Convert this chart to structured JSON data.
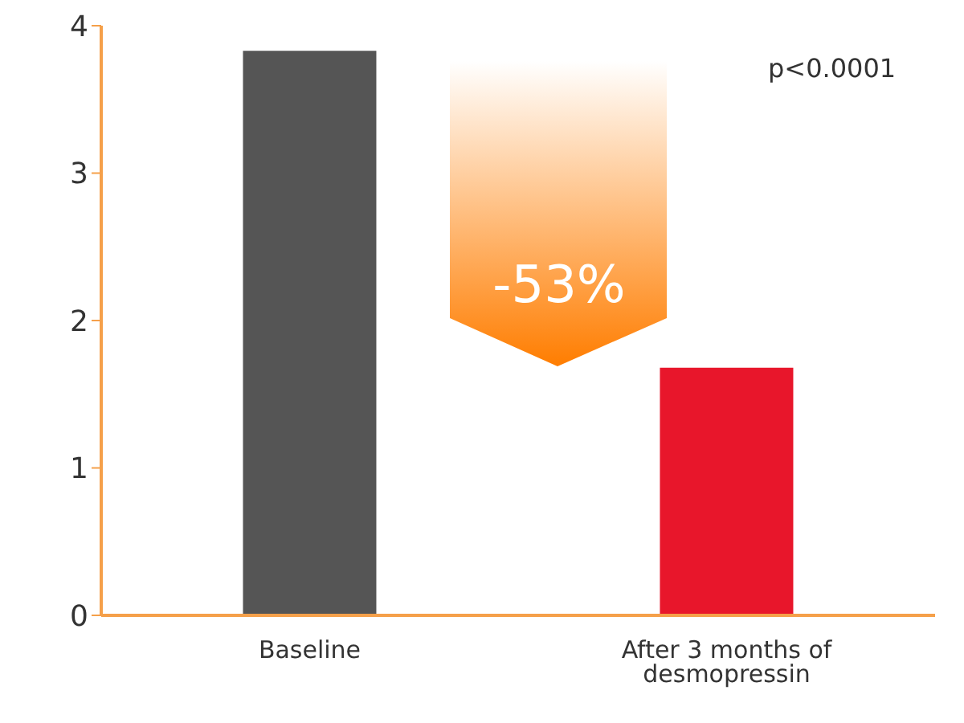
{
  "chart_data": {
    "type": "bar",
    "categories": [
      "Baseline",
      "After 3 months of desmopressin"
    ],
    "values": [
      3.83,
      1.68
    ],
    "colors": [
      "#555555",
      "#e8162b"
    ],
    "ylim": [
      0,
      4
    ],
    "yticks": [
      0,
      1,
      2,
      3,
      4
    ],
    "annotations": [
      "p<0.0001",
      "-53%"
    ]
  }
}
